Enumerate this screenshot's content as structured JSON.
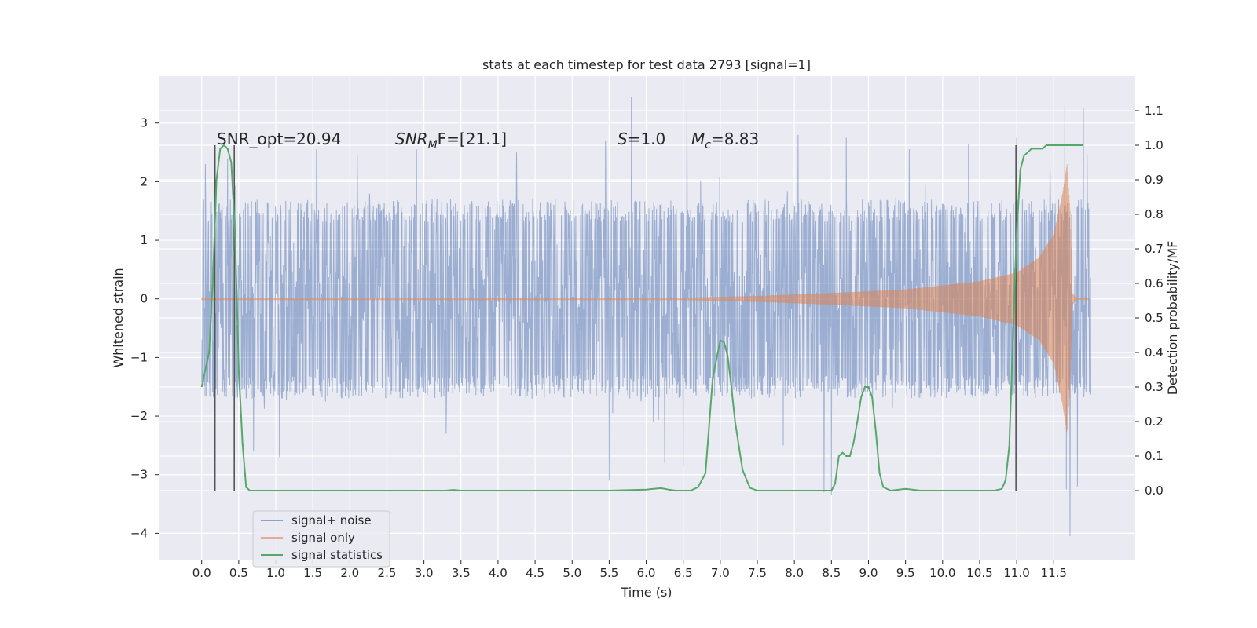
{
  "chart_data": {
    "type": "line",
    "title": "stats at each timestep for test data 2793 [signal=1]",
    "xlabel": "Time (s)",
    "ylabel": "Whitened strain",
    "ylabel_right": "Detection probability/MF",
    "xlim": [
      -0.58,
      12.6
    ],
    "ylim": [
      -4.45,
      3.8
    ],
    "ylim_right": [
      -0.2,
      1.2
    ],
    "x_ticks": [
      "0.0",
      "0.5",
      "1.0",
      "1.5",
      "2.0",
      "2.5",
      "3.0",
      "3.5",
      "4.0",
      "4.5",
      "5.0",
      "5.5",
      "6.0",
      "6.5",
      "7.0",
      "7.5",
      "8.0",
      "8.5",
      "9.0",
      "9.5",
      "10.0",
      "10.5",
      "11.0",
      "11.5"
    ],
    "x_tick_values": [
      0,
      0.5,
      1,
      1.5,
      2,
      2.5,
      3,
      3.5,
      4,
      4.5,
      5,
      5.5,
      6,
      6.5,
      7,
      7.5,
      8,
      8.5,
      9,
      9.5,
      10,
      10.5,
      11,
      11.5
    ],
    "y_ticks": [
      "−4",
      "−3",
      "−2",
      "−1",
      "0",
      "1",
      "2",
      "3"
    ],
    "y_tick_values": [
      -4,
      -3,
      -2,
      -1,
      0,
      1,
      2,
      3
    ],
    "y2_ticks": [
      "0.0",
      "0.1",
      "0.2",
      "0.3",
      "0.4",
      "0.5",
      "0.6",
      "0.7",
      "0.8",
      "0.9",
      "1.0",
      "1.1"
    ],
    "y2_tick_values": [
      0,
      0.1,
      0.2,
      0.3,
      0.4,
      0.5,
      0.6,
      0.7,
      0.8,
      0.9,
      1.0,
      1.1
    ],
    "grid": true,
    "legend_position": "lower-left",
    "annotations": {
      "snr_opt": "SNR_opt=20.94",
      "snr_mf_name": "SNR",
      "snr_mf_sub": "M",
      "snr_mf_rest": "F=[21.1]",
      "s_name": "S",
      "s_rest": "=1.0",
      "mc_name": "M",
      "mc_sub": "c",
      "mc_rest": "=8.83"
    },
    "vertical_lines_x": [
      0.18,
      0.44,
      10.99
    ],
    "series": [
      {
        "name": "signal+ noise",
        "color": "#4c72b0",
        "x_range": [
          0,
          12
        ],
        "amplitude_envelope": [
          [
            0,
            1.5
          ],
          [
            12,
            1.5
          ]
        ],
        "peaks": [
          [
            0.05,
            2.3
          ],
          [
            0.35,
            2.4
          ],
          [
            0.7,
            -2.6
          ],
          [
            1.05,
            -2.7
          ],
          [
            1.55,
            2.55
          ],
          [
            2.1,
            2.45
          ],
          [
            2.9,
            2.55
          ],
          [
            3.3,
            -2.3
          ],
          [
            4.25,
            2.5
          ],
          [
            5.45,
            2.7
          ],
          [
            5.5,
            -3.1
          ],
          [
            5.8,
            3.45
          ],
          [
            6.25,
            -2.8
          ],
          [
            6.5,
            -2.85
          ],
          [
            6.55,
            3.2
          ],
          [
            7.85,
            -2.5
          ],
          [
            8.05,
            2.8
          ],
          [
            8.4,
            -3.3
          ],
          [
            8.5,
            -3.35
          ],
          [
            8.7,
            2.75
          ],
          [
            9.55,
            2.55
          ],
          [
            10.35,
            2.65
          ],
          [
            10.99,
            -2.95
          ],
          [
            11.0,
            2.75
          ],
          [
            11.45,
            2.3
          ],
          [
            11.65,
            3.3
          ],
          [
            11.67,
            -3.25
          ],
          [
            11.72,
            -4.05
          ],
          [
            11.82,
            -3.2
          ],
          [
            11.9,
            3.25
          ],
          [
            11.95,
            2.45
          ]
        ]
      },
      {
        "name": "signal only",
        "color": "#dd8452",
        "x_range": [
          0,
          12
        ],
        "chirp_envelope": [
          [
            0,
            0.02
          ],
          [
            6.5,
            0.02
          ],
          [
            7.5,
            0.05
          ],
          [
            8.5,
            0.1
          ],
          [
            9.5,
            0.16
          ],
          [
            10.5,
            0.3
          ],
          [
            11,
            0.45
          ],
          [
            11.3,
            0.7
          ],
          [
            11.5,
            1.1
          ],
          [
            11.62,
            1.8
          ],
          [
            11.68,
            2.3
          ],
          [
            11.72,
            1.5
          ],
          [
            11.75,
            0.1
          ],
          [
            11.8,
            0.02
          ],
          [
            12,
            0.0
          ]
        ]
      },
      {
        "name": "signal statistics",
        "color": "#55a868",
        "x": [
          0.0,
          0.1,
          0.15,
          0.2,
          0.25,
          0.3,
          0.35,
          0.4,
          0.45,
          0.5,
          0.55,
          0.6,
          0.65,
          0.7,
          1.0,
          1.5,
          2.0,
          2.5,
          3.0,
          3.3,
          3.4,
          3.5,
          4.0,
          5.0,
          5.5,
          6.0,
          6.1,
          6.2,
          6.3,
          6.4,
          6.5,
          6.6,
          6.7,
          6.8,
          6.9,
          7.0,
          7.05,
          7.1,
          7.15,
          7.2,
          7.3,
          7.4,
          7.5,
          7.6,
          7.7,
          8.0,
          8.3,
          8.4,
          8.5,
          8.55,
          8.6,
          8.65,
          8.7,
          8.75,
          8.8,
          8.85,
          8.9,
          8.95,
          9.0,
          9.05,
          9.1,
          9.15,
          9.2,
          9.3,
          9.5,
          9.7,
          10.0,
          10.5,
          10.7,
          10.8,
          10.85,
          10.9,
          10.95,
          11.0,
          11.05,
          11.1,
          11.15,
          11.2,
          11.3,
          11.35,
          11.4,
          11.45,
          11.5,
          11.55,
          11.6,
          11.7,
          11.8,
          11.9
        ],
        "y": [
          0.3,
          0.4,
          0.6,
          0.9,
          0.99,
          1.0,
          0.99,
          0.95,
          0.75,
          0.35,
          0.14,
          0.01,
          0.0,
          0.0,
          0.0,
          0.0,
          0.0,
          0.0,
          0.0,
          0.0,
          0.002,
          0.0,
          0.0,
          0.0,
          0.0,
          0.003,
          0.005,
          0.007,
          0.003,
          0.0,
          0.0,
          0.0,
          0.01,
          0.05,
          0.33,
          0.435,
          0.43,
          0.39,
          0.3,
          0.2,
          0.06,
          0.008,
          0.0,
          0.0,
          0.0,
          0.0,
          0.0,
          0.0,
          0.0,
          0.02,
          0.1,
          0.11,
          0.1,
          0.1,
          0.14,
          0.2,
          0.27,
          0.3,
          0.3,
          0.27,
          0.17,
          0.05,
          0.01,
          0.0,
          0.005,
          0.0,
          0.0,
          0.0,
          0.0,
          0.005,
          0.03,
          0.13,
          0.45,
          0.75,
          0.93,
          0.97,
          0.98,
          0.99,
          0.99,
          0.99,
          1.0,
          1.0,
          1.0,
          1.0,
          1.0,
          1.0,
          1.0,
          1.0
        ]
      }
    ]
  }
}
